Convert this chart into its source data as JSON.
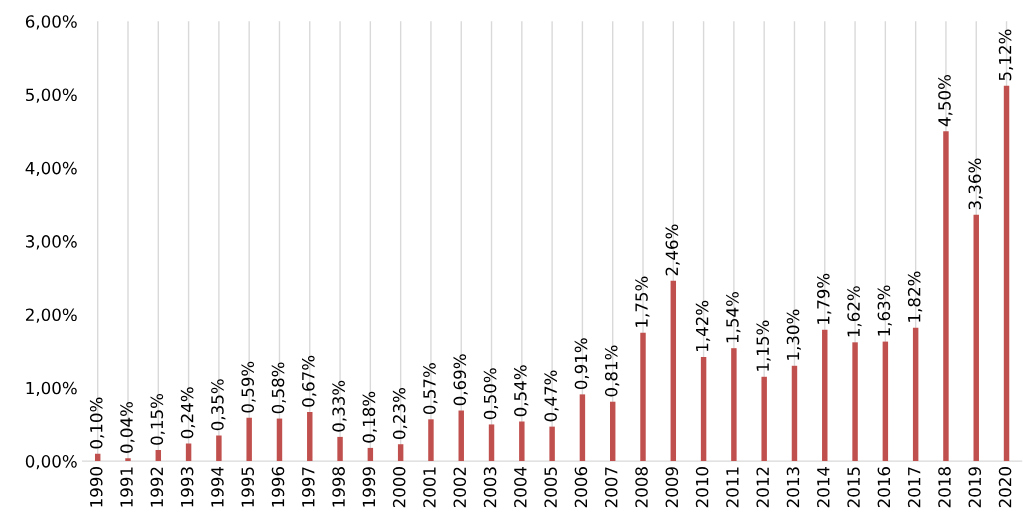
{
  "chart_data": {
    "type": "bar",
    "categories": [
      "1990",
      "1991",
      "1992",
      "1993",
      "1994",
      "1995",
      "1996",
      "1997",
      "1998",
      "1999",
      "2000",
      "2001",
      "2002",
      "2003",
      "2004",
      "2005",
      "2006",
      "2007",
      "2008",
      "2009",
      "2010",
      "2011",
      "2012",
      "2013",
      "2014",
      "2015",
      "2016",
      "2017",
      "2018",
      "2019",
      "2020"
    ],
    "values": [
      0.1,
      0.04,
      0.15,
      0.24,
      0.35,
      0.59,
      0.58,
      0.67,
      0.33,
      0.18,
      0.23,
      0.57,
      0.69,
      0.5,
      0.54,
      0.47,
      0.91,
      0.81,
      1.75,
      2.46,
      1.42,
      1.54,
      1.15,
      1.3,
      1.79,
      1.62,
      1.63,
      1.82,
      4.5,
      3.36,
      5.12
    ],
    "value_labels": [
      "0,10%",
      "0,04%",
      "0,15%",
      "0,24%",
      "0,35%",
      "0,59%",
      "0,58%",
      "0,67%",
      "0,33%",
      "0,18%",
      "0,23%",
      "0,57%",
      "0,69%",
      "0,50%",
      "0,54%",
      "0,47%",
      "0,91%",
      "0,81%",
      "1,75%",
      "2,46%",
      "1,42%",
      "1,54%",
      "1,15%",
      "1,30%",
      "1,79%",
      "1,62%",
      "1,63%",
      "1,82%",
      "4,50%",
      "3,36%",
      "5,12%"
    ],
    "color": "#c0504d",
    "ylim": [
      0,
      6
    ],
    "yticks": [
      {
        "value": 0,
        "label": "0,00%"
      },
      {
        "value": 1,
        "label": "1,00%"
      },
      {
        "value": 2,
        "label": "2,00%"
      },
      {
        "value": 3,
        "label": "3,00%"
      },
      {
        "value": 4,
        "label": "4,00%"
      },
      {
        "value": 5,
        "label": "5,00%"
      },
      {
        "value": 6,
        "label": "6,00%"
      }
    ],
    "grid": "x"
  }
}
